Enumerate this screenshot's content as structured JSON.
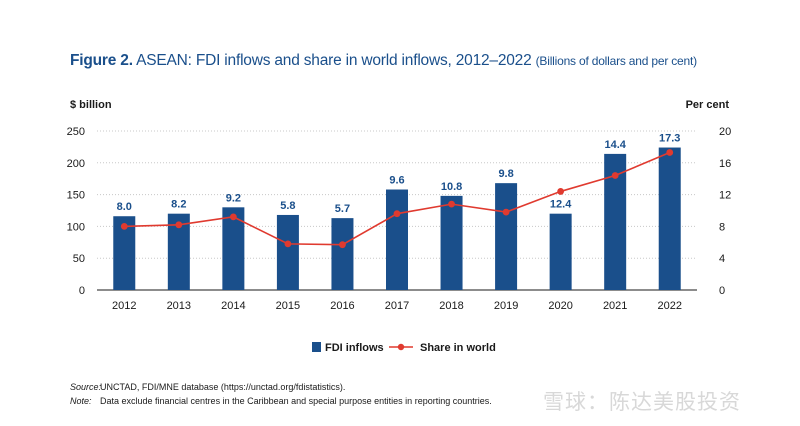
{
  "title": {
    "label": "Figure 2.",
    "main": "ASEAN: FDI inflows and share in world inflows, 2012–2022",
    "subtitle": "(Billions of dollars and per cent)"
  },
  "chart_data": {
    "type": "bar",
    "categories": [
      "2012",
      "2013",
      "2014",
      "2015",
      "2016",
      "2017",
      "2018",
      "2019",
      "2020",
      "2021",
      "2022"
    ],
    "series": [
      {
        "name": "FDI inflows",
        "type": "bar",
        "axis": "left",
        "values": [
          116,
          120,
          130,
          118,
          113,
          158,
          148,
          168,
          120,
          214,
          224
        ],
        "data_labels": [
          "8.0",
          "8.2",
          "9.2",
          "5.8",
          "5.7",
          "9.6",
          "10.8",
          "9.8",
          "12.4",
          "14.4",
          "17.3"
        ]
      },
      {
        "name": "Share in world",
        "type": "line",
        "axis": "right",
        "values": [
          8.0,
          8.2,
          9.2,
          5.8,
          5.7,
          9.6,
          10.8,
          9.8,
          12.4,
          14.4,
          17.3
        ]
      }
    ],
    "ylabel": "$ billion",
    "y2label": "Per cent",
    "ylim": [
      0,
      250
    ],
    "y2lim": [
      0,
      20
    ],
    "yticks": [
      0,
      50,
      100,
      150,
      200,
      250
    ],
    "y2ticks": [
      0,
      4,
      8,
      12,
      16,
      20
    ],
    "grid": true,
    "legend_position": "bottom"
  },
  "colors": {
    "bar": "#1a4f8b",
    "line": "#e03a2f",
    "title": "#1a4f8b",
    "grid": "#c8c8c8"
  },
  "source": {
    "source_key": "Source:",
    "source_text": "UNCTAD, FDI/MNE database (https://unctad.org/fdistatistics).",
    "note_key": "Note:",
    "note_text": "Data exclude financial centres in the Caribbean and special purpose entities in reporting countries."
  },
  "watermark": "雪球：陈达美股投资"
}
